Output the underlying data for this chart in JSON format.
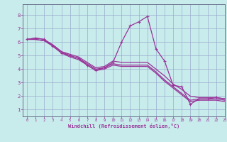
{
  "xlabel": "Windchill (Refroidissement éolien,°C)",
  "bg_color": "#c8ecec",
  "line_color": "#993399",
  "spine_color": "#555577",
  "grid_color": "#99aacc",
  "xlim": [
    -0.5,
    23
  ],
  "ylim": [
    0.5,
    8.8
  ],
  "xticks": [
    0,
    1,
    2,
    3,
    4,
    5,
    6,
    7,
    8,
    9,
    10,
    11,
    12,
    13,
    14,
    15,
    16,
    17,
    18,
    19,
    20,
    21,
    22,
    23
  ],
  "yticks": [
    1,
    2,
    3,
    4,
    5,
    6,
    7,
    8
  ],
  "series": [
    [
      6.2,
      6.3,
      6.2,
      5.7,
      5.2,
      5.0,
      4.8,
      4.3,
      3.9,
      4.1,
      4.5,
      6.0,
      7.2,
      7.5,
      7.9,
      5.5,
      4.6,
      2.8,
      2.7,
      1.4,
      1.8,
      1.8,
      1.9,
      1.8
    ],
    [
      6.2,
      6.3,
      6.2,
      5.8,
      5.3,
      5.1,
      4.9,
      4.5,
      4.1,
      4.2,
      4.6,
      4.5,
      4.5,
      4.5,
      4.5,
      4.0,
      3.5,
      2.9,
      2.5,
      2.0,
      1.9,
      1.9,
      1.9,
      1.8
    ],
    [
      6.2,
      6.2,
      6.1,
      5.8,
      5.3,
      5.0,
      4.8,
      4.4,
      4.0,
      4.1,
      4.4,
      4.3,
      4.3,
      4.3,
      4.3,
      3.8,
      3.2,
      2.7,
      2.2,
      1.7,
      1.8,
      1.8,
      1.8,
      1.7
    ],
    [
      6.2,
      6.2,
      6.1,
      5.7,
      5.2,
      4.9,
      4.7,
      4.3,
      3.9,
      4.0,
      4.3,
      4.2,
      4.2,
      4.2,
      4.2,
      3.7,
      3.1,
      2.6,
      2.1,
      1.6,
      1.7,
      1.7,
      1.7,
      1.6
    ]
  ]
}
